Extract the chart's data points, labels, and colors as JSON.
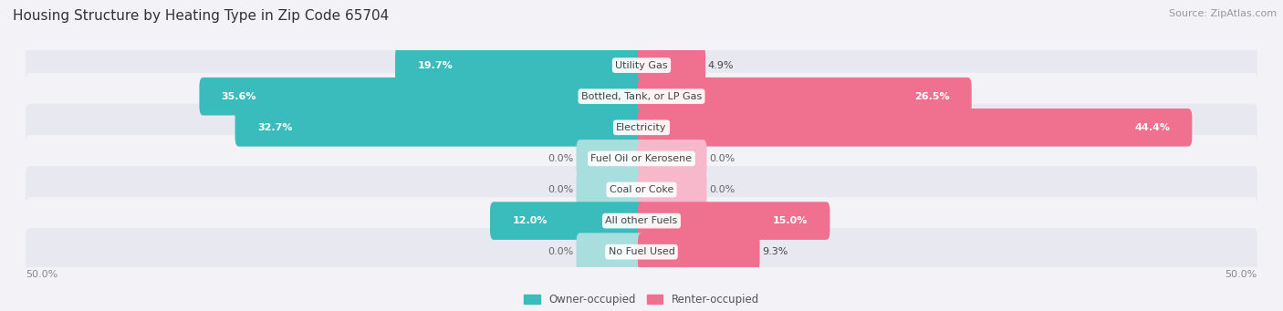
{
  "title": "Housing Structure by Heating Type in Zip Code 65704",
  "source": "Source: ZipAtlas.com",
  "categories": [
    "Utility Gas",
    "Bottled, Tank, or LP Gas",
    "Electricity",
    "Fuel Oil or Kerosene",
    "Coal or Coke",
    "All other Fuels",
    "No Fuel Used"
  ],
  "owner_values": [
    19.7,
    35.6,
    32.7,
    0.0,
    0.0,
    12.0,
    0.0
  ],
  "renter_values": [
    4.9,
    26.5,
    44.4,
    0.0,
    0.0,
    15.0,
    9.3
  ],
  "owner_color": "#3BBCBC",
  "renter_color": "#F07090",
  "owner_color_zero": "#A8DEDE",
  "renter_color_zero": "#F8B8CC",
  "xlim_left": -50,
  "xlim_right": 50,
  "zero_bar_width": 5.0,
  "legend_owner": "Owner-occupied",
  "legend_renter": "Renter-occupied",
  "title_fontsize": 11,
  "source_fontsize": 8,
  "value_fontsize": 8,
  "category_fontsize": 8,
  "bg_color": "#F2F2F7",
  "row_colors": [
    "#E8E8F0",
    "#F2F2F7"
  ]
}
